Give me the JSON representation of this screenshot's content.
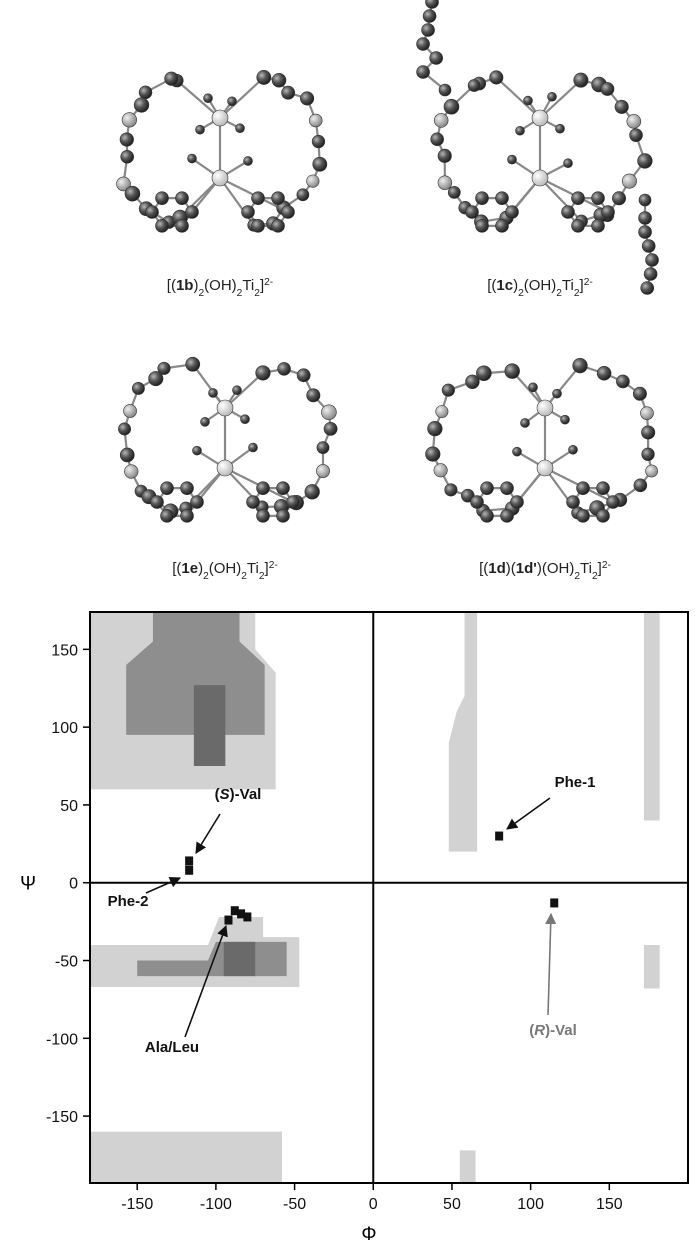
{
  "figure": {
    "molecules": [
      {
        "caption": [
          {
            "text": "[(",
            "style": "normal"
          },
          {
            "text": "1b",
            "style": "bold"
          },
          {
            "text": ")",
            "style": "normal"
          },
          {
            "text": "2",
            "style": "sub"
          },
          {
            "text": "(OH)",
            "style": "normal"
          },
          {
            "text": "2",
            "style": "sub"
          },
          {
            "text": "Ti",
            "style": "normal"
          },
          {
            "text": "2",
            "style": "sub"
          },
          {
            "text": "]",
            "style": "normal"
          },
          {
            "text": "2-",
            "style": "sup"
          }
        ]
      },
      {
        "caption": [
          {
            "text": "[(",
            "style": "normal"
          },
          {
            "text": "1c",
            "style": "bold"
          },
          {
            "text": ")",
            "style": "normal"
          },
          {
            "text": "2",
            "style": "sub"
          },
          {
            "text": "(OH)",
            "style": "normal"
          },
          {
            "text": "2",
            "style": "sub"
          },
          {
            "text": "Ti",
            "style": "normal"
          },
          {
            "text": "2",
            "style": "sub"
          },
          {
            "text": "]",
            "style": "normal"
          },
          {
            "text": "2-",
            "style": "sup"
          }
        ]
      },
      {
        "caption": [
          {
            "text": "[(",
            "style": "normal"
          },
          {
            "text": "1e",
            "style": "bold"
          },
          {
            "text": ")",
            "style": "normal"
          },
          {
            "text": "2",
            "style": "sub"
          },
          {
            "text": "(OH)",
            "style": "normal"
          },
          {
            "text": "2",
            "style": "sub"
          },
          {
            "text": "Ti",
            "style": "normal"
          },
          {
            "text": "2",
            "style": "sub"
          },
          {
            "text": "]",
            "style": "normal"
          },
          {
            "text": "2-",
            "style": "sup"
          }
        ]
      },
      {
        "caption": [
          {
            "text": "[(",
            "style": "normal"
          },
          {
            "text": "1d",
            "style": "bold"
          },
          {
            "text": ")(",
            "style": "normal"
          },
          {
            "text": "1d'",
            "style": "bold"
          },
          {
            "text": ")(OH)",
            "style": "normal"
          },
          {
            "text": "2",
            "style": "sub"
          },
          {
            "text": "Ti",
            "style": "normal"
          },
          {
            "text": "2",
            "style": "sub"
          },
          {
            "text": "]",
            "style": "normal"
          },
          {
            "text": "2-",
            "style": "sup"
          }
        ]
      }
    ]
  },
  "chart_data": {
    "type": "scatter",
    "xlabel": "Φ",
    "ylabel": "Ψ",
    "xlim": [
      -180,
      200
    ],
    "ylim": [
      -193,
      174
    ],
    "xticks": [
      -150,
      -100,
      -50,
      0,
      50,
      100,
      150
    ],
    "yticks": [
      -150,
      -100,
      -50,
      0,
      50,
      100,
      150
    ],
    "quadrant_lines": true,
    "regions": [
      {
        "color": "#d2d2d2",
        "x": [
          -180,
          -75,
          -75,
          -62,
          -62,
          -180
        ],
        "y": [
          174,
          174,
          150,
          135,
          60,
          60
        ]
      },
      {
        "color": "#8e8e8e",
        "x": [
          -157,
          -140,
          -140,
          -85,
          -85,
          -69,
          -69,
          -157
        ],
        "y": [
          140,
          155,
          174,
          174,
          155,
          140,
          95,
          95
        ]
      },
      {
        "color": "#6a6a6a",
        "x": [
          -114,
          -94,
          -94,
          -114
        ],
        "y": [
          127,
          127,
          75,
          75
        ]
      },
      {
        "color": "#d2d2d2",
        "x": [
          -180,
          -105,
          -98,
          -70,
          -70,
          -47,
          -47,
          -180
        ],
        "y": [
          -40,
          -40,
          -22,
          -22,
          -35,
          -35,
          -67,
          -67
        ]
      },
      {
        "color": "#8e8e8e",
        "x": [
          -150,
          -105,
          -100,
          -55,
          -55,
          -150
        ],
        "y": [
          -50,
          -50,
          -38,
          -38,
          -60,
          -60
        ]
      },
      {
        "color": "#6a6a6a",
        "x": [
          -95,
          -75,
          -75,
          -95
        ],
        "y": [
          -38,
          -38,
          -60,
          -60
        ]
      },
      {
        "color": "#d2d2d2",
        "x": [
          48,
          48,
          53,
          58,
          58,
          66,
          66
        ],
        "y": [
          20,
          90,
          110,
          120,
          174,
          174,
          20
        ]
      },
      {
        "color": "#d2d2d2",
        "x": [
          -180,
          -58,
          -58,
          -180
        ],
        "y": [
          -160,
          -160,
          -193,
          -193
        ]
      },
      {
        "color": "#d2d2d2",
        "x": [
          55,
          65,
          65,
          55
        ],
        "y": [
          -172,
          -172,
          -193,
          -193
        ]
      },
      {
        "color": "#d2d2d2",
        "x": [
          172,
          182,
          182,
          172
        ],
        "y": [
          174,
          174,
          40,
          40
        ]
      },
      {
        "color": "#d2d2d2",
        "x": [
          172,
          182,
          182,
          172
        ],
        "y": [
          -40,
          -40,
          -68,
          -68
        ]
      }
    ],
    "points": {
      "color": "#111111",
      "x": [
        -117,
        -117,
        80,
        115,
        -92,
        -88,
        -84,
        -80
      ],
      "y": [
        14,
        8,
        30,
        -13,
        -24,
        -18,
        -20,
        -22
      ]
    },
    "annotations": [
      {
        "color": "#111111",
        "parts": [
          {
            "text": "(",
            "style": "bold"
          },
          {
            "text": "S",
            "style": "bold-italic"
          },
          {
            "text": ")-Val",
            "style": "bold"
          }
        ]
      },
      {
        "color": "#111111",
        "parts": [
          {
            "text": "Phe-1",
            "style": "bold"
          }
        ]
      },
      {
        "color": "#111111",
        "parts": [
          {
            "text": "Phe-2",
            "style": "bold"
          }
        ]
      },
      {
        "color": "#111111",
        "parts": [
          {
            "text": "Ala/Leu",
            "style": "bold"
          }
        ]
      },
      {
        "color": "#777777",
        "parts": [
          {
            "text": "(",
            "style": "bold"
          },
          {
            "text": "R",
            "style": "bold-italic"
          },
          {
            "text": ")-Val",
            "style": "bold"
          }
        ]
      }
    ]
  }
}
